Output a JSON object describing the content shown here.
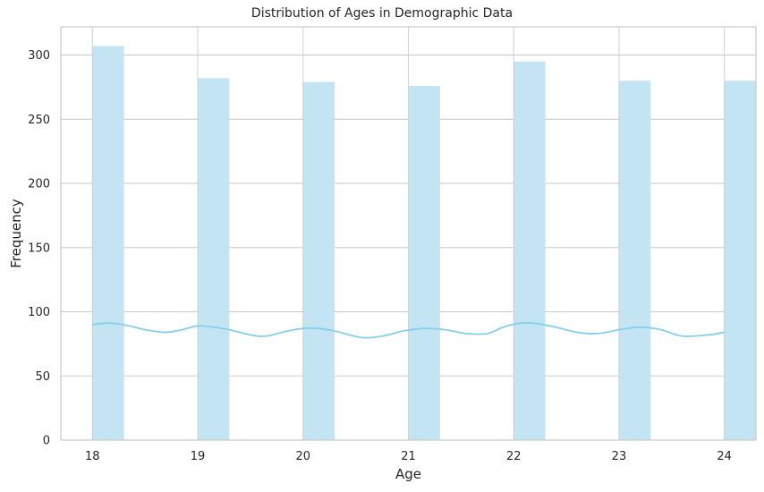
{
  "chart_data": {
    "type": "bar",
    "title": "Distribution of Ages in Demographic Data",
    "xlabel": "Age",
    "ylabel": "Frequency",
    "categories": [
      "18",
      "19",
      "20",
      "21",
      "22",
      "23",
      "24"
    ],
    "x": [
      18,
      19,
      20,
      21,
      22,
      23,
      24
    ],
    "values": [
      307,
      282,
      279,
      276,
      295,
      280,
      280
    ],
    "xticks": [
      18,
      19,
      20,
      21,
      22,
      23,
      24
    ],
    "yticks": [
      0,
      50,
      100,
      150,
      200,
      250,
      300
    ],
    "xlim": [
      17.7,
      24.3
    ],
    "ylim": [
      0,
      322
    ],
    "kde": {
      "x": [
        18.0,
        18.1,
        18.2,
        18.35,
        18.5,
        18.7,
        18.85,
        19.0,
        19.15,
        19.3,
        19.5,
        19.65,
        19.85,
        20.0,
        20.15,
        20.3,
        20.55,
        20.75,
        20.95,
        21.15,
        21.35,
        21.55,
        21.75,
        21.9,
        22.05,
        22.2,
        22.4,
        22.6,
        22.8,
        23.0,
        23.2,
        23.4,
        23.6,
        23.85,
        24.0
      ],
      "y": [
        90,
        91,
        91,
        89,
        86,
        84,
        86,
        89,
        88,
        86,
        82,
        81,
        85,
        87,
        87,
        85,
        80,
        81,
        85,
        87,
        86,
        83,
        83,
        88,
        91,
        91,
        88,
        84,
        83,
        86,
        88,
        86,
        81,
        82,
        84
      ]
    },
    "grid": true,
    "bar_color": "#c3e5f3",
    "kde_color": "#87ceeb",
    "grid_color": "#cccccc",
    "axis_color": "#cccccc"
  }
}
